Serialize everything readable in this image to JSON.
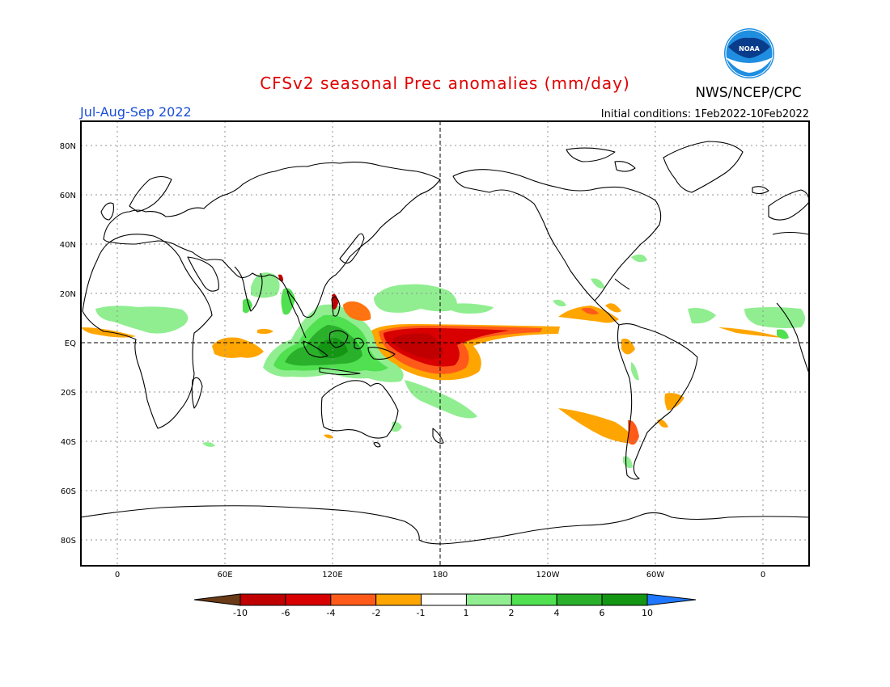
{
  "title": "CFSv2 seasonal Prec anomalies (mm/day)",
  "agency": "NWS/NCEP/CPC",
  "logo_text": "NOAA",
  "season": "Jul-Aug-Sep 2022",
  "initial_conditions": "Initial conditions: 1Feb2022-10Feb2022",
  "lat_labels": [
    "80N",
    "60N",
    "40N",
    "20N",
    "EQ",
    "20S",
    "40S",
    "60S",
    "80S"
  ],
  "lon_labels": [
    "0",
    "60E",
    "120E",
    "180",
    "120W",
    "60W",
    "0"
  ],
  "colorbar": {
    "tick_labels": [
      "-10",
      "-6",
      "-4",
      "-2",
      "-1",
      "1",
      "2",
      "4",
      "6",
      "10"
    ],
    "colors": [
      "#6b3a16",
      "#c00000",
      "#d80000",
      "#ff5a1a",
      "#ffa500",
      "#ffffff",
      "#90ee90",
      "#50e050",
      "#2ab02a",
      "#149614",
      "#1f78ff"
    ]
  },
  "colors": {
    "title": "#e00000",
    "season": "#1a4fd8",
    "coastline": "#000000",
    "grid": "#909090"
  }
}
